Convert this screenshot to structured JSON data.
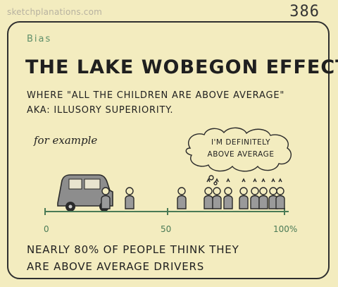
{
  "header": {
    "site": "sketchplanations.com",
    "number": "386"
  },
  "card": {
    "tag": "Bias",
    "title": "THE LAKE WOBEGON EFFECT",
    "subtitle_line1": "WHERE \"ALL THE CHILDREN ARE ABOVE AVERAGE\"",
    "subtitle_line2": "AKA: ILLUSORY SUPERIORITY.",
    "example_label": "for example",
    "thought_line1": "I'M DEFINITELY",
    "thought_line2": "ABOVE AVERAGE",
    "axis_labels": {
      "start": "0",
      "mid": "50",
      "end": "100%"
    },
    "bottom_line1": "NEARLY 80% OF PEOPLE THINK THEY",
    "bottom_line2": "ARE ABOVE AVERAGE DRIVERS"
  },
  "colors": {
    "background": "#f3ecbf",
    "ink": "#1f1f1f",
    "accent_green": "#5f8f6a",
    "car_fill": "#8d8d8d"
  },
  "icons": [
    "car-icon",
    "person-icon",
    "thought-bubble"
  ]
}
